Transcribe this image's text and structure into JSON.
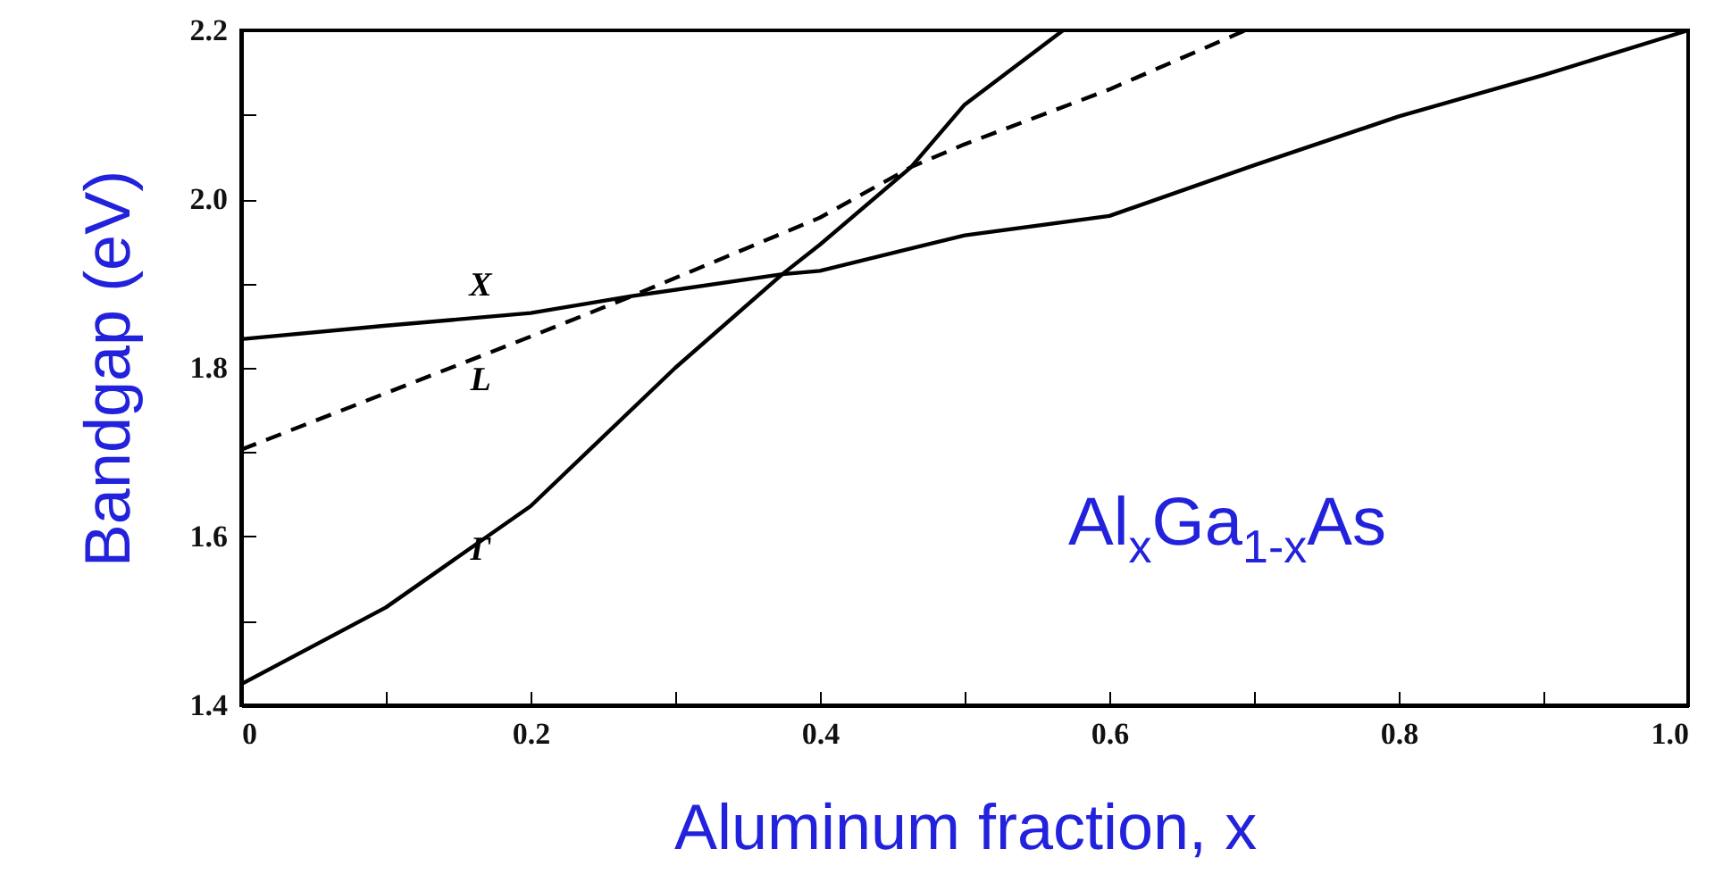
{
  "chart_data": {
    "type": "line",
    "xlabel": "Aluminum fraction, x",
    "ylabel": "Bandgap (eV)",
    "annotations": [
      "Al$_{x}$Ga$_{1-x}$As"
    ],
    "xlim": [
      0,
      1.0
    ],
    "ylim": [
      1.4,
      2.2
    ],
    "xticks": [
      "0",
      {
        "value": 0.1,
        "label": null
      },
      {
        "value": 0.2,
        "label": "0.2"
      },
      {
        "value": 0.3,
        "label": null
      },
      {
        "value": 0.4,
        "label": "0.4"
      },
      {
        "value": 0.5,
        "label": null
      },
      {
        "value": 0.6,
        "label": "0.6"
      },
      {
        "value": 0.7,
        "label": null
      },
      {
        "value": 0.8,
        "label": "0.8"
      },
      {
        "value": 0.9,
        "label": null
      },
      {
        "value": 1.0,
        "label": "1.0"
      }
    ],
    "yticks": [
      {
        "value": 1.4,
        "label": "1.4"
      },
      {
        "value": 1.5,
        "label": null
      },
      {
        "value": 1.6,
        "label": "1.6"
      },
      {
        "value": 1.7,
        "label": null
      },
      {
        "value": 1.8,
        "label": "1.8"
      },
      {
        "value": 1.9,
        "label": null
      },
      {
        "value": 2.0,
        "label": "2.0"
      },
      {
        "value": 2.1,
        "label": null
      },
      {
        "value": 2.2,
        "label": "2.2"
      }
    ],
    "grid": false,
    "marker": "none",
    "series": [
      {
        "name": "Γ",
        "color": "#000000",
        "line_style": "solid",
        "x": [
          0,
          0.1,
          0.2,
          0.3,
          0.374,
          0.4,
          0.463,
          0.5,
          0.568
        ],
        "values": [
          1.425,
          1.516,
          1.636,
          1.8,
          1.911,
          1.946,
          2.038,
          2.112,
          2.2
        ]
      },
      {
        "name": "X",
        "color": "#000000",
        "line_style": "solid",
        "x": [
          0,
          0.1,
          0.2,
          0.27,
          0.374,
          0.4,
          0.5,
          0.6,
          0.7,
          0.8,
          0.9,
          1.0
        ],
        "values": [
          1.834,
          1.85,
          1.865,
          1.885,
          1.911,
          1.915,
          1.957,
          1.98,
          2.04,
          2.098,
          2.147,
          2.2
        ]
      },
      {
        "name": "L",
        "color": "#000000",
        "line_style": "dashed",
        "x": [
          0,
          0.1,
          0.2,
          0.27,
          0.4,
          0.463,
          0.5,
          0.6,
          0.694
        ],
        "values": [
          1.703,
          1.77,
          1.837,
          1.885,
          1.978,
          2.038,
          2.065,
          2.13,
          2.2
        ]
      }
    ]
  }
}
